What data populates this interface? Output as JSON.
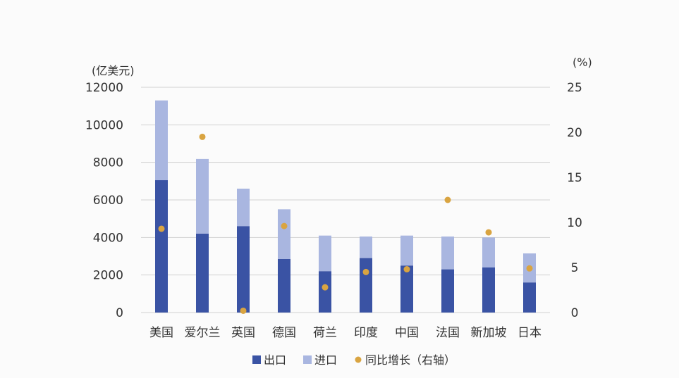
{
  "chart_data": {
    "type": "bar",
    "stacked": true,
    "categories": [
      "美国",
      "爱尔兰",
      "英国",
      "德国",
      "荷兰",
      "印度",
      "中国",
      "法国",
      "新加坡",
      "日本"
    ],
    "series": [
      {
        "name": "出口",
        "axis": "left",
        "values": [
          7050,
          4200,
          4600,
          2850,
          2200,
          2900,
          2500,
          2300,
          2400,
          1600
        ]
      },
      {
        "name": "进口",
        "axis": "left",
        "values": [
          4250,
          3980,
          2000,
          2650,
          1900,
          1150,
          1600,
          1750,
          1600,
          1550
        ]
      },
      {
        "name": "同比增长（右轴）",
        "axis": "right",
        "type": "scatter",
        "values": [
          9.3,
          19.5,
          0.2,
          9.6,
          2.8,
          4.5,
          4.8,
          12.5,
          8.9,
          4.9
        ]
      }
    ],
    "left_unit": "(亿美元)",
    "right_unit": "(%)",
    "ylim": [
      0,
      12000
    ],
    "yticks": [
      0,
      2000,
      4000,
      6000,
      8000,
      10000,
      12000
    ],
    "y2lim": [
      0,
      25
    ],
    "y2ticks": [
      0,
      5,
      10,
      15,
      20,
      25
    ],
    "grid": true,
    "legend_position": "bottom",
    "colors": {
      "export": "#3a53a4",
      "import": "#a9b6e0",
      "growth": "#d9a441"
    }
  }
}
